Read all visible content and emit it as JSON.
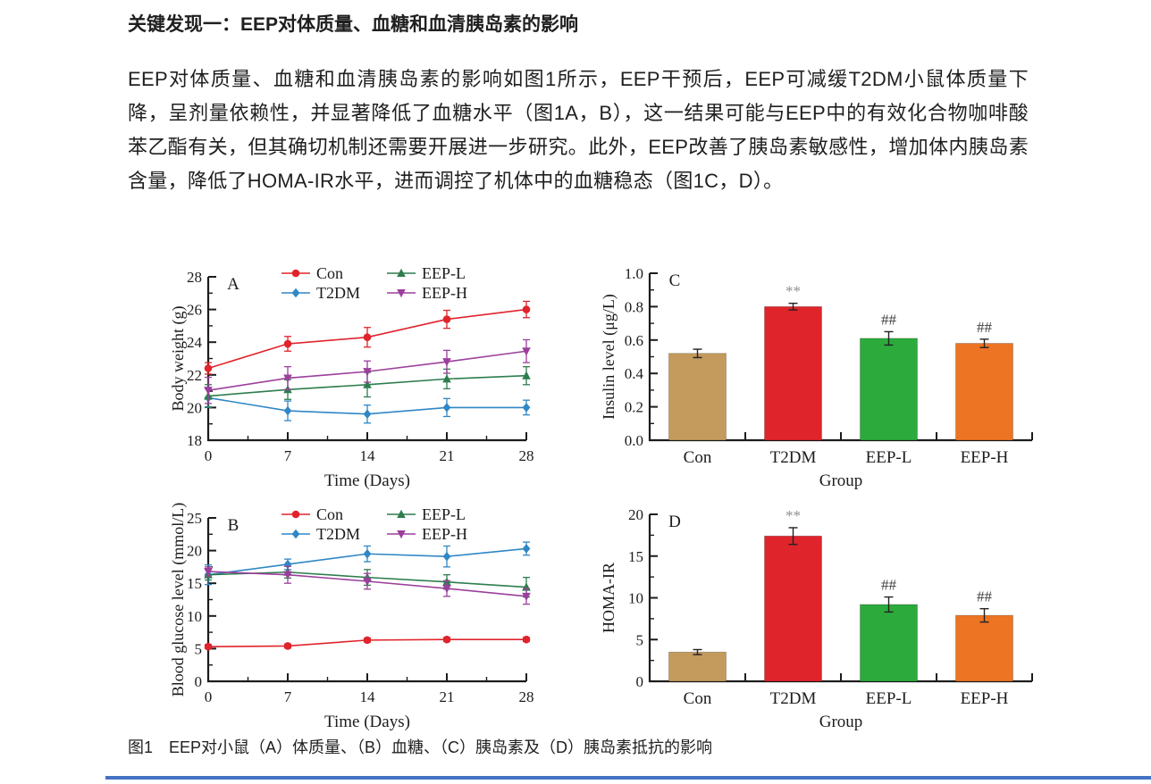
{
  "page": {
    "heading": "关键发现一：EEP对体质量、血糖和血清胰岛素的影响",
    "paragraph": "EEP对体质量、血糖和血清胰岛素的影响如图1所示，EEP干预后，EEP可减缓T2DM小鼠体质量下降，呈剂量依赖性，并显著降低了血糖水平（图1A，B），这一结果可能与EEP中的有效化合物咖啡酸苯乙酯有关，但其确切机制还需要开展进一步研究。此外，EEP改善了胰岛素敏感性，增加体内胰岛素含量，降低了HOMA-IR水平，进而调控了机体中的血糖稳态（图1C，D）。",
    "figure_caption": "图1　EEP对小鼠（A）体质量、（B）血糖、（C）胰岛素及（D）胰岛素抵抗的影响",
    "accent_rule_color": "#4472c4",
    "axis_color": "#1c1c1c"
  },
  "chart_data": [
    {
      "id": "A",
      "type": "line",
      "panel_label": "A",
      "title": "",
      "xlabel": "Time (Days)",
      "ylabel": "Body weight (g)",
      "x": [
        0,
        7,
        14,
        21,
        28
      ],
      "ylim": [
        18,
        28
      ],
      "yticks": [
        18,
        20,
        22,
        24,
        26,
        28
      ],
      "ytick_decimals": 0,
      "legend_position": "top",
      "grid": false,
      "series": [
        {
          "name": "Con",
          "color": "#e0242b",
          "marker": "circle",
          "values": [
            22.4,
            23.9,
            24.3,
            25.4,
            26.0
          ],
          "errors": [
            0.35,
            0.45,
            0.6,
            0.55,
            0.5
          ]
        },
        {
          "name": "T2DM",
          "color": "#2f87c6",
          "marker": "diamond",
          "values": [
            20.6,
            19.8,
            19.6,
            20.0,
            20.0
          ],
          "errors": [
            0.55,
            0.6,
            0.55,
            0.55,
            0.45
          ]
        },
        {
          "name": "EEP-L",
          "color": "#2e7d4e",
          "marker": "triangle-up",
          "values": [
            20.7,
            21.1,
            21.4,
            21.75,
            21.95
          ],
          "errors": [
            0.7,
            0.6,
            0.75,
            0.6,
            0.55
          ]
        },
        {
          "name": "EEP-H",
          "color": "#9c3f9c",
          "marker": "triangle-down",
          "values": [
            21.05,
            21.8,
            22.2,
            22.8,
            23.45
          ],
          "errors": [
            0.8,
            0.7,
            0.65,
            0.7,
            0.7
          ]
        }
      ]
    },
    {
      "id": "C",
      "type": "bar",
      "panel_label": "C",
      "title": "",
      "xlabel": "Group",
      "ylabel": "Insulin level (μg/L)",
      "categories": [
        "Con",
        "T2DM",
        "EEP-L",
        "EEP-H"
      ],
      "values": [
        0.52,
        0.8,
        0.61,
        0.58
      ],
      "errors": [
        0.025,
        0.02,
        0.04,
        0.025
      ],
      "annotations": [
        "",
        "**",
        "##",
        "##"
      ],
      "ann_colors": [
        "",
        "#8f8f8f",
        "#3f3f3f",
        "#3f3f3f"
      ],
      "colors": [
        "#c49a5d",
        "#e0242b",
        "#2cab3c",
        "#ed7423"
      ],
      "ylim": [
        0,
        1.0
      ],
      "yticks": [
        0,
        0.2,
        0.4,
        0.6,
        0.8,
        1.0
      ],
      "ytick_decimals": 1,
      "grid": false
    },
    {
      "id": "B",
      "type": "line",
      "panel_label": "B",
      "title": "",
      "xlabel": "Time (Days)",
      "ylabel": "Blood glucose level (mmol/L)",
      "x": [
        0,
        7,
        14,
        21,
        28
      ],
      "ylim": [
        0,
        25
      ],
      "yticks": [
        0,
        5,
        10,
        15,
        20,
        25
      ],
      "ytick_decimals": 0,
      "legend_position": "top",
      "grid": false,
      "series": [
        {
          "name": "Con",
          "color": "#e0242b",
          "marker": "circle",
          "values": [
            5.3,
            5.4,
            6.3,
            6.4,
            6.4
          ],
          "errors": [
            0.3,
            0.3,
            0.3,
            0.3,
            0.3
          ]
        },
        {
          "name": "T2DM",
          "color": "#2f87c6",
          "marker": "diamond",
          "values": [
            16.3,
            17.9,
            19.5,
            19.1,
            20.3
          ],
          "errors": [
            1.5,
            0.8,
            1.2,
            1.6,
            1.0
          ]
        },
        {
          "name": "EEP-L",
          "color": "#2e7d4e",
          "marker": "triangle-up",
          "values": [
            16.3,
            16.7,
            15.9,
            15.2,
            14.4
          ],
          "errors": [
            0.8,
            0.9,
            1.2,
            1.1,
            1.5
          ]
        },
        {
          "name": "EEP-H",
          "color": "#9c3f9c",
          "marker": "triangle-down",
          "values": [
            16.8,
            16.3,
            15.3,
            14.2,
            13.0
          ],
          "errors": [
            0.7,
            1.3,
            1.2,
            1.2,
            1.2
          ]
        }
      ]
    },
    {
      "id": "D",
      "type": "bar",
      "panel_label": "D",
      "title": "",
      "xlabel": "Group",
      "ylabel": "HOMA-IR",
      "categories": [
        "Con",
        "T2DM",
        "EEP-L",
        "EEP-H"
      ],
      "values": [
        3.5,
        17.4,
        9.2,
        7.9
      ],
      "errors": [
        0.3,
        1.0,
        0.9,
        0.8
      ],
      "annotations": [
        "",
        "**",
        "##",
        "##"
      ],
      "ann_colors": [
        "",
        "#8f8f8f",
        "#3f3f3f",
        "#3f3f3f"
      ],
      "colors": [
        "#c49a5d",
        "#e0242b",
        "#2cab3c",
        "#ed7423"
      ],
      "ylim": [
        0,
        20
      ],
      "yticks": [
        0,
        5,
        10,
        15,
        20
      ],
      "ytick_decimals": 0,
      "grid": false
    }
  ]
}
